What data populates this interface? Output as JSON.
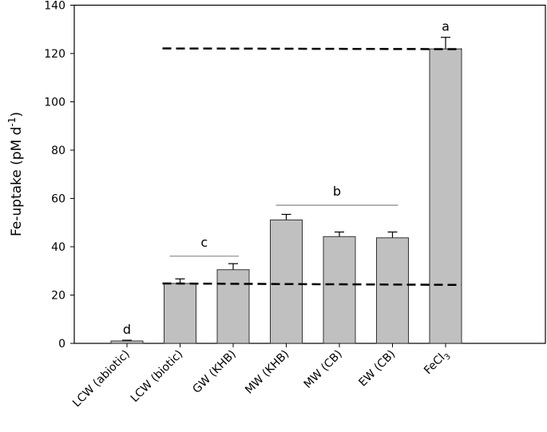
{
  "chart_data": {
    "type": "bar",
    "categories": [
      {
        "main": "LCW (abiotic)",
        "sub": ""
      },
      {
        "main": "LCW (biotic)",
        "sub": ""
      },
      {
        "main": "GW (KHB)",
        "sub": ""
      },
      {
        "main": "MW (KHB)",
        "sub": ""
      },
      {
        "main": "MW (CB)",
        "sub": ""
      },
      {
        "main": "EW (CB)",
        "sub": ""
      },
      {
        "main": "FeCl",
        "sub": "3"
      }
    ],
    "values": [
      1.0,
      24.8,
      30.5,
      51.1,
      44.2,
      43.7,
      121.9
    ],
    "errors": [
      0.3,
      1.9,
      2.5,
      2.3,
      1.9,
      2.4,
      4.8
    ],
    "ylabel": {
      "main": "Fe-uptake (pM d",
      "sup": "-1",
      "close": ")"
    },
    "ylim": [
      0,
      140
    ],
    "yticks": [
      0,
      20,
      40,
      60,
      80,
      100,
      120,
      140
    ],
    "bar_color": "#c0c0c0",
    "grid": false,
    "reference_lines": [
      {
        "style": "dashed",
        "from_category": 1,
        "to_category": 6,
        "y_start": 122.1,
        "y_end": 121.8
      },
      {
        "style": "dashed",
        "from_category": 1,
        "to_category": 6,
        "y_start": 24.8,
        "y_end": 24.2
      }
    ],
    "significance_groups": [
      {
        "letter": "d",
        "categories": [
          0
        ],
        "y": 1.3
      },
      {
        "letter": "c",
        "categories": [
          1,
          2
        ],
        "y": 36.1
      },
      {
        "letter": "b",
        "categories": [
          3,
          4,
          5
        ],
        "y": 57.2
      },
      {
        "letter": "a",
        "categories": [
          6
        ],
        "y": 126.7
      }
    ]
  }
}
